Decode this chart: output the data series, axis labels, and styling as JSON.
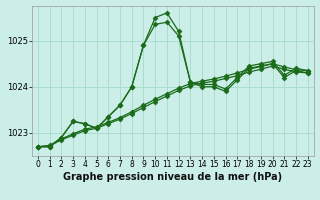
{
  "title": "Graphe pression niveau de la mer (hPa)",
  "bg_color": "#cceee8",
  "grid_color": "#aaddcc",
  "line_color": "#1a6b1a",
  "xlim": [
    -0.5,
    23.5
  ],
  "ylim": [
    1022.5,
    1025.75
  ],
  "yticks": [
    1023,
    1024,
    1025
  ],
  "xticks": [
    0,
    1,
    2,
    3,
    4,
    5,
    6,
    7,
    8,
    9,
    10,
    11,
    12,
    13,
    14,
    15,
    16,
    17,
    18,
    19,
    20,
    21,
    22,
    23
  ],
  "series": [
    {
      "x": [
        0,
        1,
        2,
        3,
        4,
        5,
        6,
        7,
        8,
        9,
        10,
        11,
        12,
        13,
        14,
        15,
        16,
        17,
        18,
        19,
        20,
        21,
        22,
        23
      ],
      "y": [
        1022.7,
        1022.7,
        1022.9,
        1023.25,
        1023.2,
        1023.1,
        1023.35,
        1023.6,
        1024.0,
        1024.9,
        1025.5,
        1025.6,
        1025.2,
        1024.1,
        1024.05,
        1024.05,
        1023.95,
        1024.2,
        1024.45,
        1024.5,
        1024.55,
        1024.25,
        1024.4,
        1024.35
      ]
    },
    {
      "x": [
        0,
        1,
        2,
        3,
        4,
        5,
        6,
        7,
        8,
        9,
        10,
        11,
        12,
        13,
        14,
        15,
        16,
        17,
        18,
        19,
        20,
        21,
        22,
        23
      ],
      "y": [
        1022.7,
        1022.7,
        1022.9,
        1023.25,
        1023.2,
        1023.1,
        1023.35,
        1023.6,
        1024.0,
        1024.9,
        1025.35,
        1025.4,
        1025.1,
        1024.1,
        1024.0,
        1024.0,
        1023.9,
        1024.15,
        1024.4,
        1024.45,
        1024.5,
        1024.2,
        1024.35,
        1024.3
      ]
    },
    {
      "x": [
        0,
        1,
        2,
        3,
        4,
        5,
        6,
        7,
        8,
        9,
        10,
        11,
        12,
        13,
        14,
        15,
        16,
        17,
        18,
        19,
        20,
        21,
        22,
        23
      ],
      "y": [
        1022.7,
        1022.72,
        1022.85,
        1022.95,
        1023.05,
        1023.1,
        1023.2,
        1023.3,
        1023.42,
        1023.55,
        1023.68,
        1023.8,
        1023.92,
        1024.02,
        1024.08,
        1024.12,
        1024.18,
        1024.24,
        1024.32,
        1024.38,
        1024.45,
        1024.38,
        1024.32,
        1024.3
      ]
    },
    {
      "x": [
        0,
        1,
        2,
        3,
        4,
        5,
        6,
        7,
        8,
        9,
        10,
        11,
        12,
        13,
        14,
        15,
        16,
        17,
        18,
        19,
        20,
        21,
        22,
        23
      ],
      "y": [
        1022.7,
        1022.73,
        1022.87,
        1022.98,
        1023.08,
        1023.13,
        1023.23,
        1023.33,
        1023.46,
        1023.6,
        1023.73,
        1023.85,
        1023.97,
        1024.07,
        1024.12,
        1024.17,
        1024.23,
        1024.3,
        1024.38,
        1024.44,
        1024.5,
        1024.43,
        1024.37,
        1024.35
      ]
    }
  ],
  "marker": "D",
  "markersize": 2.5,
  "linewidth": 0.9,
  "tick_fontsize": 5.5,
  "title_fontsize": 7.0,
  "title_fontweight": "bold"
}
